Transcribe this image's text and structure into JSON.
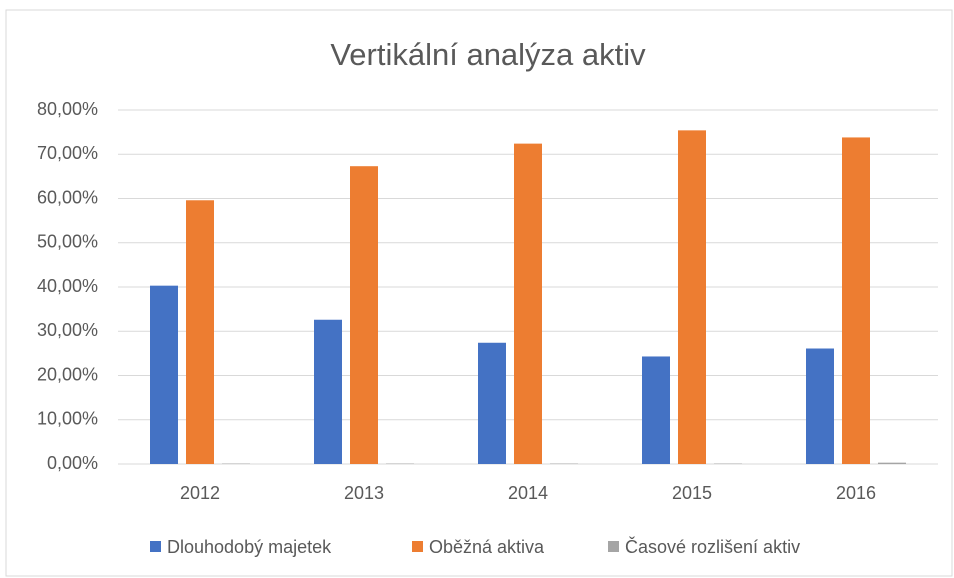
{
  "chart_data": {
    "type": "bar",
    "title": "Vertikální analýza aktiv",
    "categories": [
      "2012",
      "2013",
      "2014",
      "2015",
      "2016"
    ],
    "series": [
      {
        "name": "Dlouhodobý majetek",
        "color": "#4472c4",
        "values": [
          40.3,
          32.6,
          27.4,
          24.3,
          26.1
        ]
      },
      {
        "name": "Oběžná aktiva",
        "color": "#ed7d31",
        "values": [
          59.6,
          67.3,
          72.4,
          75.4,
          73.8
        ]
      },
      {
        "name": "Časové rozlišení aktiv",
        "color": "#a5a5a5",
        "values": [
          0.1,
          0.1,
          0.1,
          0.1,
          0.3
        ]
      }
    ],
    "ylim": [
      0,
      80
    ],
    "yticks": [
      {
        "value": 0,
        "label": "0,00%"
      },
      {
        "value": 10,
        "label": "10,00%"
      },
      {
        "value": 20,
        "label": "20,00%"
      },
      {
        "value": 30,
        "label": "30,00%"
      },
      {
        "value": 40,
        "label": "40,00%"
      },
      {
        "value": 50,
        "label": "50,00%"
      },
      {
        "value": 60,
        "label": "60,00%"
      },
      {
        "value": 70,
        "label": "70,00%"
      },
      {
        "value": 80,
        "label": "80,00%"
      }
    ],
    "grid": true,
    "legend": "bottom"
  }
}
